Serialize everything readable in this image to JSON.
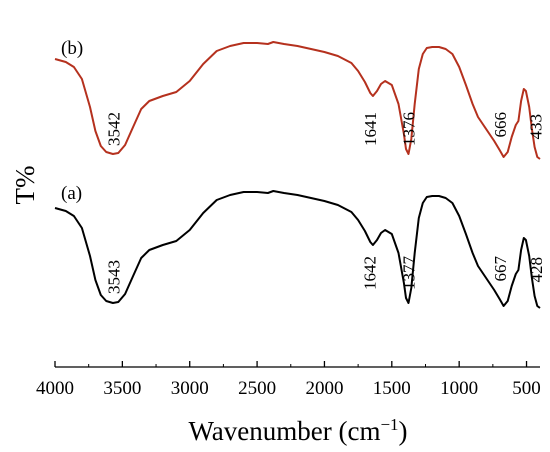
{
  "chart_data": {
    "type": "line",
    "xlabel": "Wavenumber (cm",
    "xlabel_sup": "−1",
    "xlabel_close": ")",
    "ylabel": "T%",
    "xlim": [
      4000,
      400
    ],
    "x_reversed": true,
    "y_ticks_shown": false,
    "grid": false,
    "x_ticks": [
      4000,
      3500,
      3000,
      2500,
      2000,
      1500,
      1000,
      500
    ],
    "x_tick_labels": [
      "4000",
      "3500",
      "3000",
      "2500",
      "2000",
      "1500",
      "1000",
      "500"
    ],
    "series": [
      {
        "label": "(b)",
        "color": "#b5311e",
        "peaks": [
          {
            "x": 3542,
            "label": "3542"
          },
          {
            "x": 1641,
            "label": "1641"
          },
          {
            "x": 1376,
            "label": "1376"
          },
          {
            "x": 666,
            "label": "666"
          },
          {
            "x": 433,
            "label": "433"
          }
        ]
      },
      {
        "label": "(a)",
        "color": "#000000",
        "peaks": [
          {
            "x": 3543,
            "label": "3543"
          },
          {
            "x": 1642,
            "label": "1642"
          },
          {
            "x": 1377,
            "label": "1377"
          },
          {
            "x": 667,
            "label": "667"
          },
          {
            "x": 428,
            "label": "428"
          }
        ]
      }
    ]
  }
}
